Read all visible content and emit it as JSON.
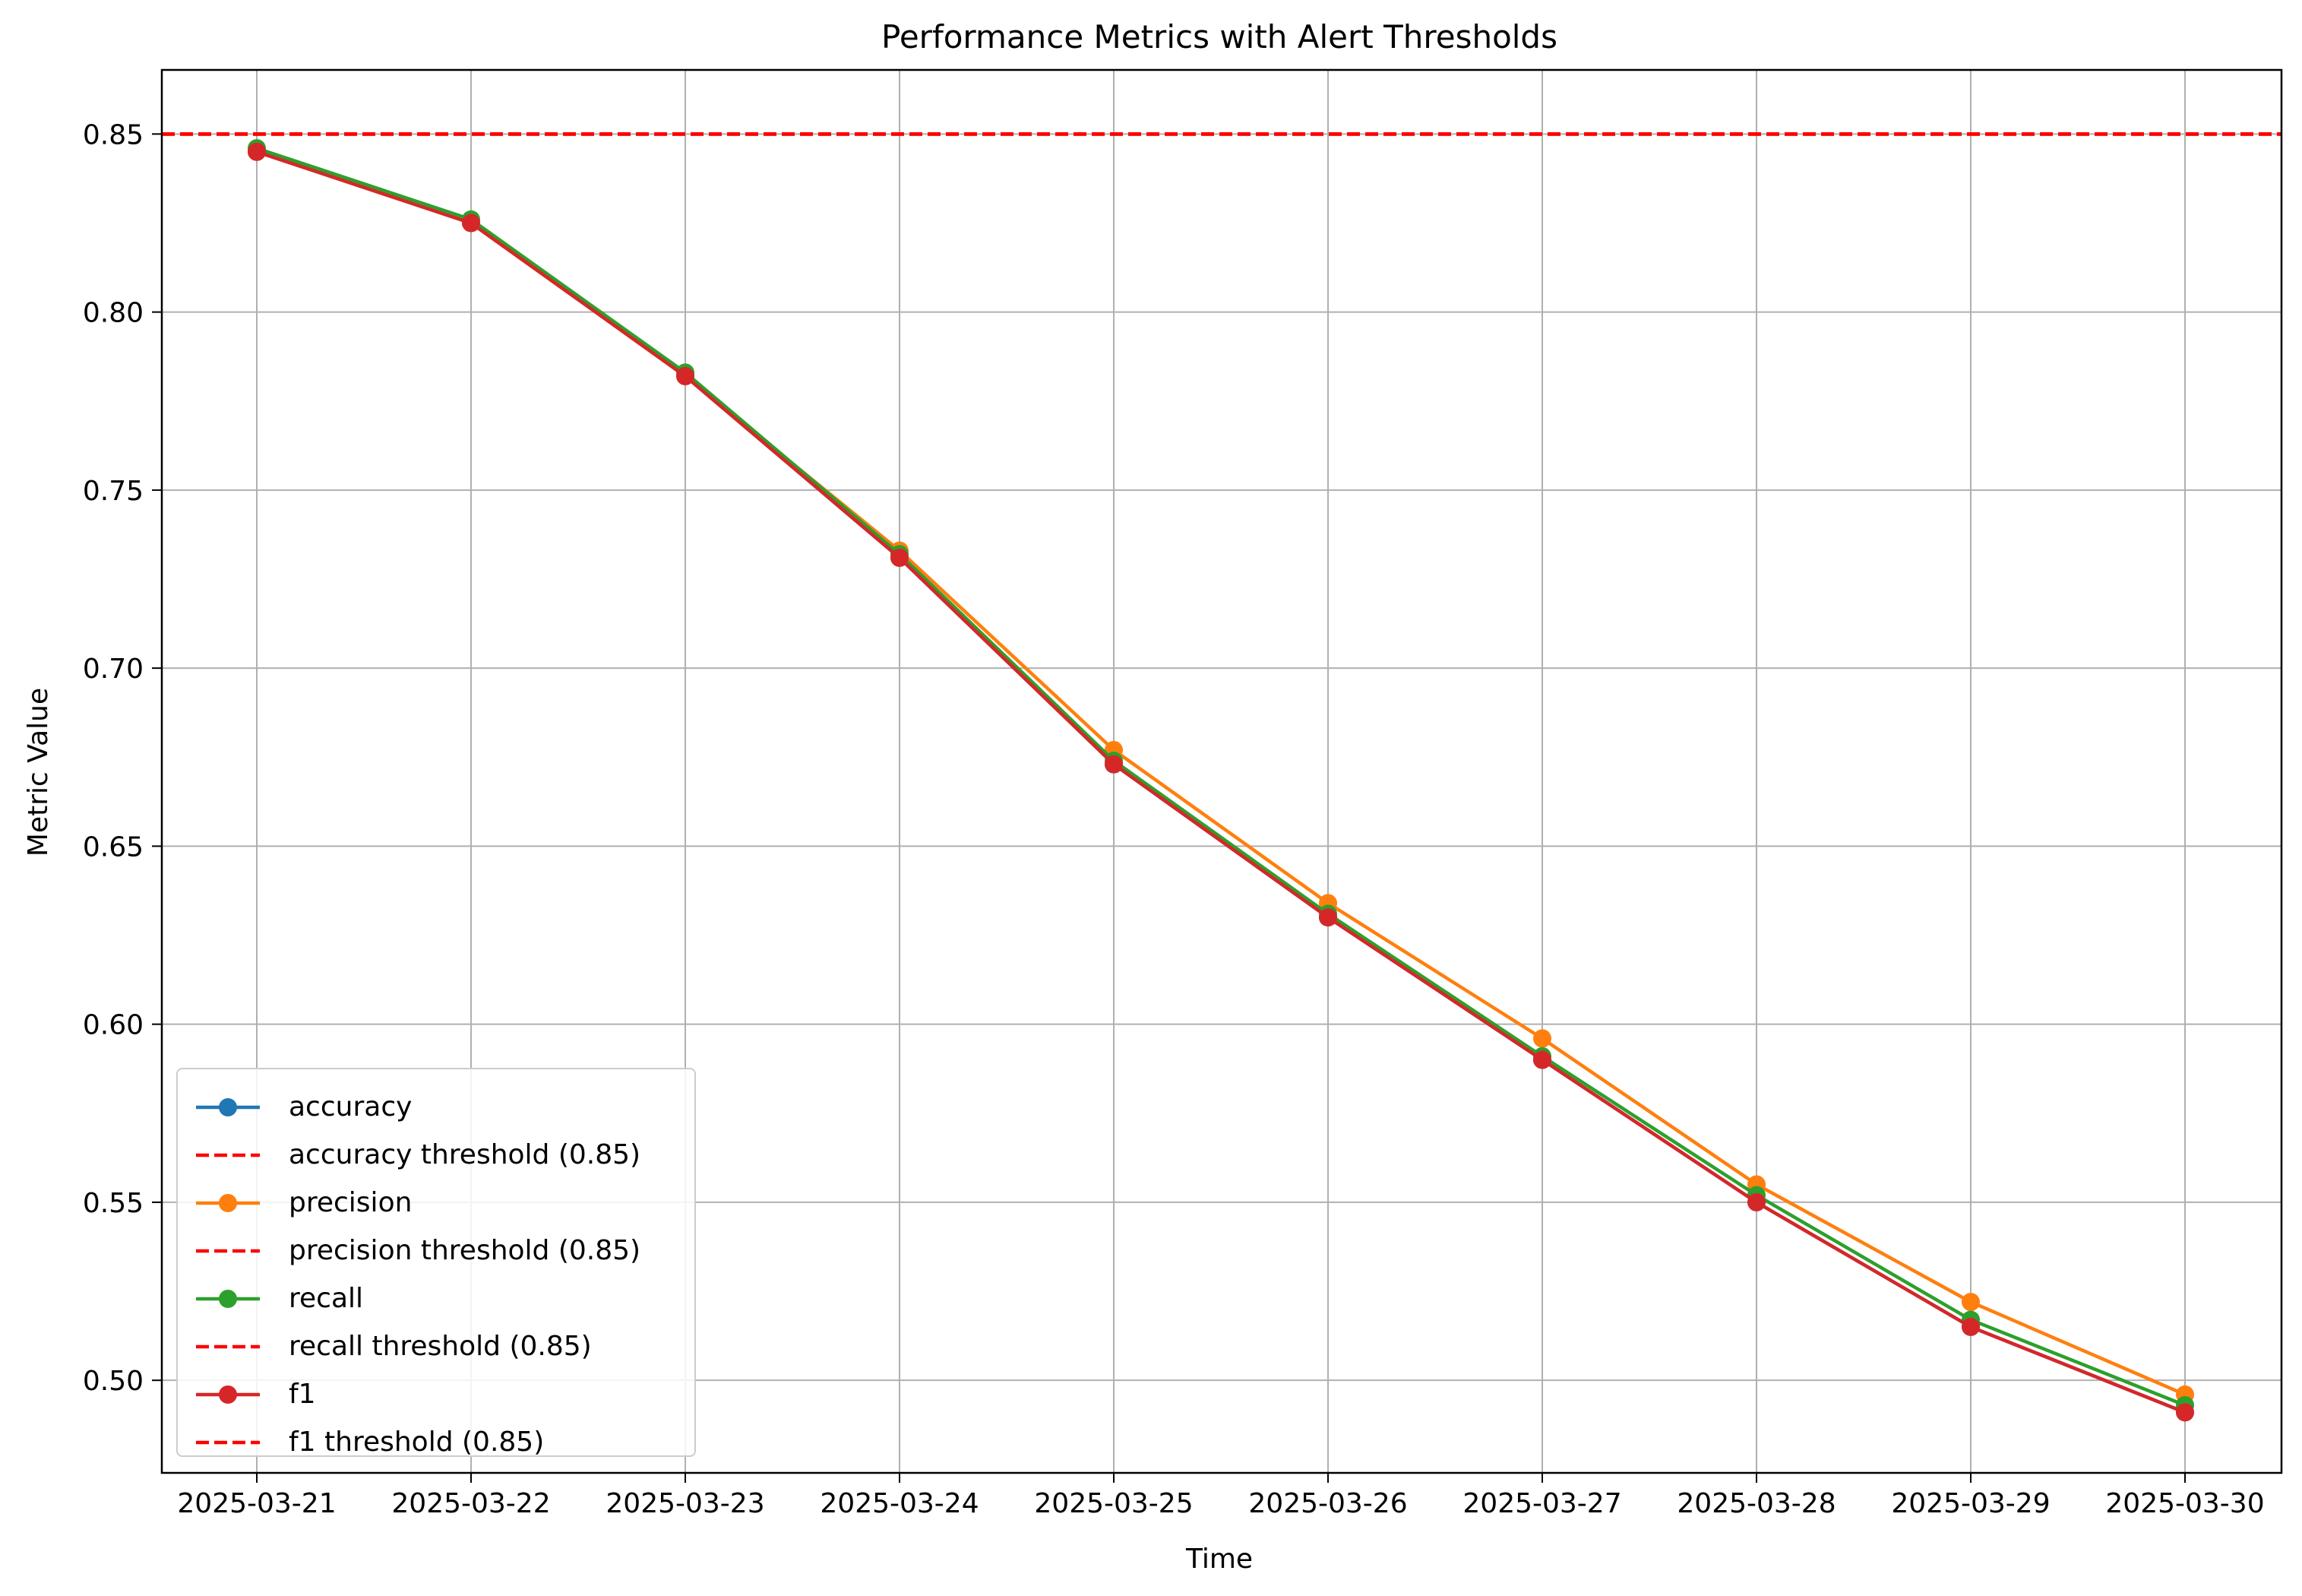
{
  "chart_data": {
    "type": "line",
    "title": "Performance Metrics with Alert Thresholds",
    "xlabel": "Time",
    "ylabel": "Metric Value",
    "x": [
      "2025-03-21",
      "2025-03-22",
      "2025-03-23",
      "2025-03-24",
      "2025-03-25",
      "2025-03-26",
      "2025-03-27",
      "2025-03-28",
      "2025-03-29",
      "2025-03-30"
    ],
    "ylim": [
      0.474,
      0.868
    ],
    "yticks": [
      "0.50",
      "0.55",
      "0.60",
      "0.65",
      "0.70",
      "0.75",
      "0.80",
      "0.85"
    ],
    "grid": true,
    "legend_position": "lower-left",
    "series": [
      {
        "name": "accuracy",
        "color": "#1f77b4",
        "values": [
          0.845,
          0.825,
          0.782,
          0.731,
          0.673,
          0.63,
          0.59,
          0.55,
          0.515,
          0.491
        ]
      },
      {
        "name": "precision",
        "color": "#ff7f0e",
        "values": [
          0.845,
          0.825,
          0.782,
          0.733,
          0.677,
          0.634,
          0.596,
          0.555,
          0.522,
          0.496
        ]
      },
      {
        "name": "recall",
        "color": "#2ca02c",
        "values": [
          0.846,
          0.826,
          0.783,
          0.732,
          0.674,
          0.631,
          0.591,
          0.552,
          0.517,
          0.493
        ]
      },
      {
        "name": "f1",
        "color": "#d62728",
        "values": [
          0.845,
          0.825,
          0.782,
          0.731,
          0.673,
          0.63,
          0.59,
          0.55,
          0.515,
          0.491
        ]
      }
    ],
    "thresholds": [
      {
        "name": "accuracy threshold (0.85)",
        "value": 0.85,
        "color": "#ff0000"
      },
      {
        "name": "precision threshold (0.85)",
        "value": 0.85,
        "color": "#ff0000"
      },
      {
        "name": "recall threshold (0.85)",
        "value": 0.85,
        "color": "#ff0000"
      },
      {
        "name": "f1 threshold (0.85)",
        "value": 0.85,
        "color": "#ff0000"
      }
    ],
    "legend": [
      "accuracy",
      "accuracy threshold (0.85)",
      "precision",
      "precision threshold (0.85)",
      "recall",
      "recall threshold (0.85)",
      "f1",
      "f1 threshold (0.85)"
    ]
  }
}
